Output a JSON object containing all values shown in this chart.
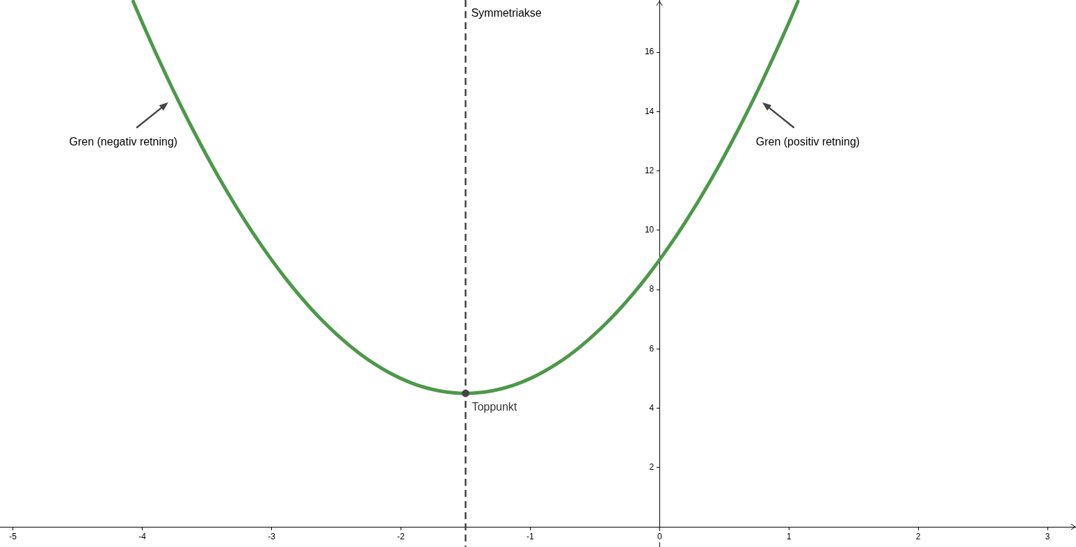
{
  "chart_data": {
    "type": "line",
    "marker": "none",
    "series": [
      {
        "color": "#4d984a",
        "x": [
          -4.07,
          -4,
          -3.9,
          -3.8,
          -3.7,
          -3.6,
          -3.5,
          -3.4,
          -3.3,
          -3.2,
          -3.1,
          -3,
          -2.9,
          -2.8,
          -2.7,
          -2.6,
          -2.5,
          -2.4,
          -2.3,
          -2.2,
          -2.1,
          -2,
          -1.9,
          -1.8,
          -1.7,
          -1.6,
          -1.5,
          -1.4,
          -1.3,
          -1.2,
          -1.1,
          -1,
          -0.9,
          -0.8,
          -0.7,
          -0.6,
          -0.5,
          -0.4,
          -0.3,
          -0.2,
          -0.1,
          0,
          0.1,
          0.2,
          0.3,
          0.4,
          0.5,
          0.6,
          0.7,
          0.8,
          0.9,
          1,
          1.07
        ],
        "values": [
          17.71,
          17,
          16.02,
          15.08,
          14.18,
          13.32,
          12.5,
          11.72,
          10.98,
          10.28,
          9.62,
          9,
          8.42,
          7.88,
          7.38,
          6.92,
          6.5,
          6.12,
          5.78,
          5.48,
          5.22,
          5,
          4.82,
          4.68,
          4.58,
          4.52,
          4.5,
          4.52,
          4.58,
          4.68,
          4.82,
          5,
          5.22,
          5.48,
          5.78,
          6.12,
          6.5,
          6.92,
          7.38,
          7.88,
          8.42,
          9,
          9.62,
          10.28,
          10.98,
          11.72,
          12.5,
          13.32,
          14.18,
          15.08,
          16.02,
          17,
          17.71
        ]
      },
      {
        "type": "scatter",
        "name": "Toppunkt",
        "color": "#444444",
        "marker": "circle",
        "x": [
          -1.5
        ],
        "values": [
          4.5
        ]
      }
    ],
    "xlim": [
      -5.1,
      3.22
    ],
    "ylim": [
      -0.68,
      17.76
    ],
    "xticks": [
      -5,
      -4,
      -3,
      -2,
      -1,
      0,
      1,
      2,
      3
    ],
    "yticks": [
      2,
      4,
      6,
      8,
      10,
      12,
      14,
      16
    ],
    "ref_lines": [
      {
        "axis": "x",
        "value": -1.5,
        "label": "Symmetriakse",
        "color": "#444444",
        "line_style": "dashed"
      }
    ],
    "annotations": [
      {
        "text": "Gren (negativ retning)",
        "x": -3.7,
        "y": 14.18
      },
      {
        "text": "Gren (positiv retning)",
        "x": 0.7,
        "y": 14.18
      }
    ]
  }
}
